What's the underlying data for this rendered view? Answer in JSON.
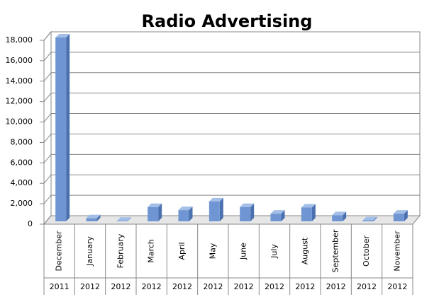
{
  "chart_data": {
    "type": "bar3d",
    "title": "Radio Advertising",
    "categories": [
      "December",
      "January",
      "February",
      "March",
      "April",
      "May",
      "June",
      "July",
      "August",
      "September",
      "October",
      "November"
    ],
    "years": [
      "2011",
      "2012",
      "2012",
      "2012",
      "2012",
      "2012",
      "2012",
      "2012",
      "2012",
      "2012",
      "2012",
      "2012"
    ],
    "values": [
      18000,
      300,
      50,
      1400,
      1100,
      1950,
      1400,
      750,
      1350,
      600,
      100,
      750
    ],
    "color": "#6f96d2",
    "ylim": [
      0,
      18000
    ],
    "yticks": [
      0,
      {
        "value": 2000,
        "label": "2,000"
      },
      {
        "value": 4000,
        "label": "4,000"
      },
      {
        "value": 6000,
        "label": "6,000"
      },
      {
        "value": 8000,
        "label": "8,000"
      },
      {
        "value": 10000,
        "label": "10,000"
      },
      {
        "value": 12000,
        "label": "12,000"
      },
      {
        "value": 14000,
        "label": "14,000"
      },
      {
        "value": 16000,
        "label": "16,000"
      },
      {
        "value": 18000,
        "label": "18,000"
      }
    ],
    "grid": true
  }
}
